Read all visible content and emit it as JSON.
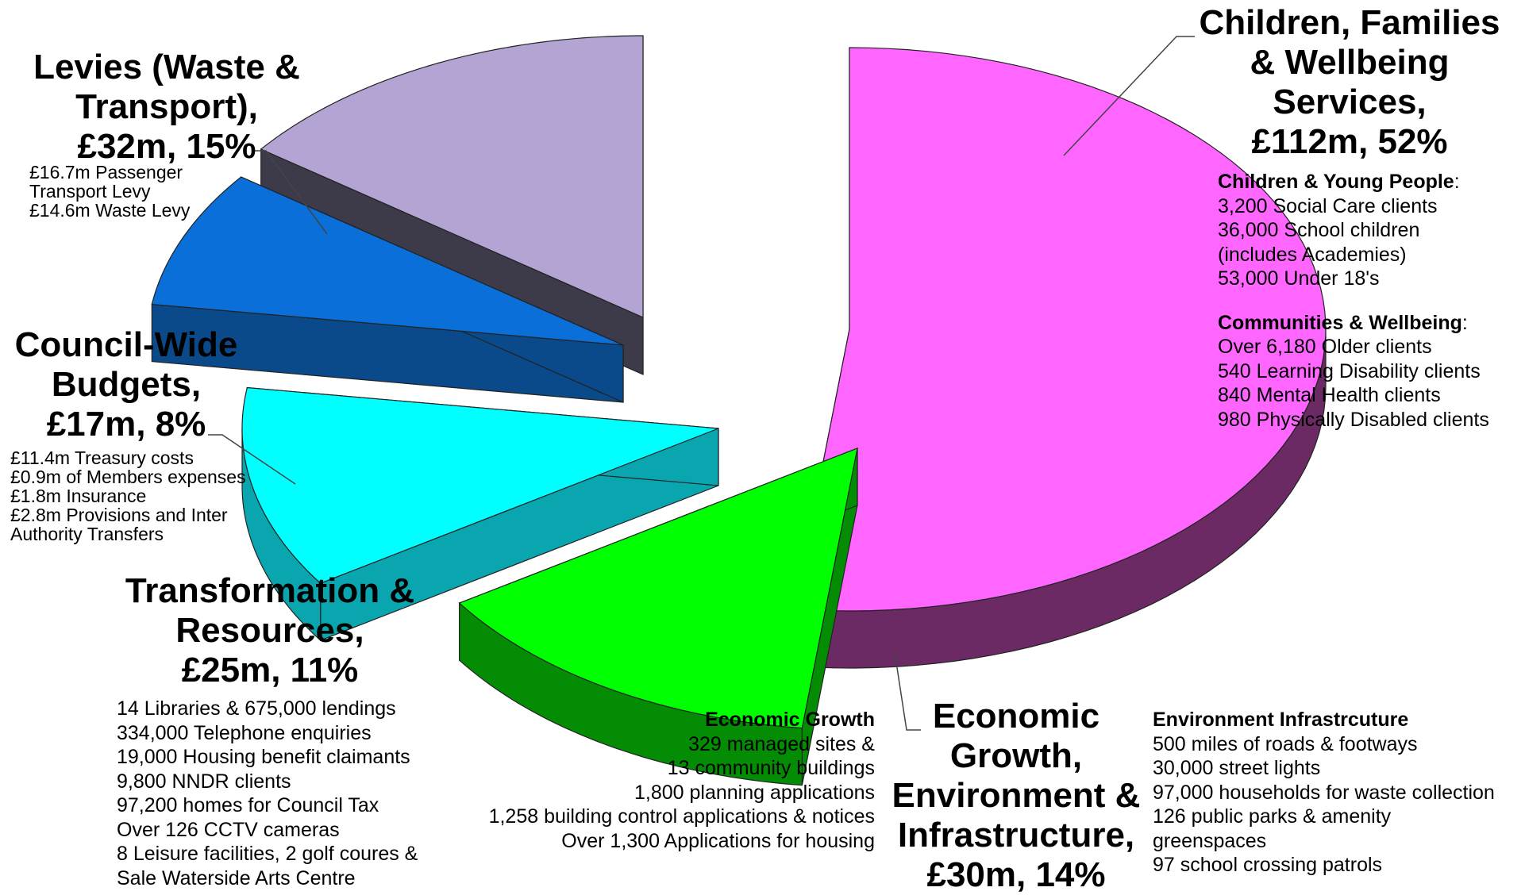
{
  "chart_data": {
    "type": "pie",
    "style": "exploded 3D pie",
    "slices": [
      {
        "key": "children",
        "label": "Children, Families & Wellbeing Services, £112m, 52%",
        "value": 112,
        "percent": 52,
        "color": "#ff66ff",
        "side": "#6b2a63"
      },
      {
        "key": "economic",
        "label": "Economic Growth, Environment & Infrastructure, £30m, 14%",
        "value": 30,
        "percent": 14,
        "color": "#00ff00",
        "side": "#058c05"
      },
      {
        "key": "transformation",
        "label": "Transformation & Resources, £25m, 11%",
        "value": 25,
        "percent": 11,
        "color": "#00ffff",
        "side": "#0aa6b0"
      },
      {
        "key": "council",
        "label": "Council-Wide Budgets, £17m, 8%",
        "value": 17,
        "percent": 8,
        "color": "#0a6fd8",
        "side": "#0a4a8a"
      },
      {
        "key": "levies",
        "label": "Levies (Waste & Transport), £32m, 15%",
        "value": 32,
        "percent": 15,
        "color": "#b4a4d4",
        "side": "#3d3a4a"
      }
    ]
  },
  "labels": {
    "children": {
      "title": [
        "Children, Families",
        "& Wellbeing",
        "Services,",
        "£112m, 52%"
      ],
      "head1": "Children & Young People",
      "head1_suffix": ":",
      "lines1": [
        "3,200 Social Care clients",
        "36,000 School children",
        "(includes Academies)",
        "53,000 Under 18's"
      ],
      "head2": "Communities & Wellbeing",
      "head2_suffix": ":",
      "lines2": [
        "Over 6,180 Older clients",
        "540 Learning Disability clients",
        "840 Mental Health clients",
        "980 Physically Disabled clients"
      ]
    },
    "levies": {
      "title": [
        "Levies (Waste &",
        "Transport),",
        "£32m, 15%"
      ],
      "lines": [
        "£16.7m Passenger",
        "Transport Levy",
        "£14.6m Waste Levy"
      ]
    },
    "council": {
      "title": [
        "Council-Wide",
        "Budgets,",
        "£17m, 8%"
      ],
      "lines": [
        "£11.4m Treasury costs",
        "£0.9m of Members expenses",
        "£1.8m Insurance",
        "£2.8m Provisions and Inter",
        "Authority Transfers"
      ]
    },
    "transformation": {
      "title": [
        "Transformation &",
        "Resources,",
        "£25m, 11%"
      ],
      "lines": [
        "14 Libraries & 675,000 lendings",
        "334,000 Telephone enquiries",
        "19,000 Housing benefit claimants",
        "9,800 NNDR clients",
        "97,200 homes for Council Tax",
        "Over 126 CCTV cameras",
        "8 Leisure facilities, 2 golf coures &",
        "Sale Waterside Arts Centre"
      ]
    },
    "economic": {
      "title": [
        "Economic",
        "Growth,",
        "Environment &",
        "Infrastructure,",
        "£30m, 14%"
      ],
      "eg_head": "Economic Growth",
      "eg_lines": [
        "329 managed sites &",
        "13 community buildings",
        "1,800 planning applications",
        "1,258 building control applications & notices",
        "Over 1,300 Applications for housing"
      ],
      "env_head": "Environment Infrastrcuture",
      "env_lines": [
        "500 miles of roads & footways",
        "30,000 street lights",
        "97,000 households for waste collection",
        "126 public parks & amenity",
        "greenspaces",
        "97 school crossing patrols"
      ]
    }
  }
}
